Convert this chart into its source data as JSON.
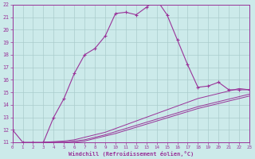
{
  "xlabel": "Windchill (Refroidissement éolien,°C)",
  "bg_color": "#cceaea",
  "grid_color": "#aacccc",
  "line_color": "#993399",
  "x_ticks": [
    0,
    1,
    2,
    3,
    4,
    5,
    6,
    7,
    8,
    9,
    10,
    11,
    12,
    13,
    14,
    15,
    16,
    17,
    18,
    19,
    20,
    21,
    22,
    23
  ],
  "y_ticks": [
    11,
    12,
    13,
    14,
    15,
    16,
    17,
    18,
    19,
    20,
    21,
    22
  ],
  "xlim": [
    0,
    23
  ],
  "ylim": [
    11,
    22
  ],
  "line1_x": [
    0,
    1,
    2,
    3,
    4,
    5,
    6,
    7,
    8,
    9,
    10,
    11,
    12,
    13,
    14,
    15,
    16,
    17,
    18,
    19,
    20,
    21,
    22,
    23
  ],
  "line1_y": [
    12,
    11,
    11,
    11,
    13,
    14.5,
    16.5,
    18,
    18.5,
    19.5,
    21.3,
    21.4,
    21.2,
    21.8,
    22.4,
    21.2,
    19.2,
    17.2,
    15.4,
    15.5,
    15.8,
    15.2,
    15.2,
    15.2
  ],
  "line2_x": [
    3,
    4,
    5,
    6,
    7,
    8,
    9,
    10,
    11,
    12,
    13,
    14,
    15,
    16,
    17,
    18,
    19,
    20,
    21,
    22,
    23
  ],
  "line2_y": [
    11,
    11.05,
    11.1,
    11.2,
    11.4,
    11.6,
    11.8,
    12.1,
    12.4,
    12.7,
    13.0,
    13.3,
    13.6,
    13.9,
    14.2,
    14.5,
    14.7,
    14.9,
    15.1,
    15.3,
    15.2
  ],
  "line3_x": [
    3,
    4,
    5,
    6,
    7,
    8,
    9,
    10,
    11,
    12,
    13,
    14,
    15,
    16,
    17,
    18,
    19,
    20,
    21,
    22,
    23
  ],
  "line3_y": [
    11,
    11,
    11.0,
    11.1,
    11.2,
    11.4,
    11.6,
    11.85,
    12.1,
    12.35,
    12.6,
    12.85,
    13.1,
    13.35,
    13.6,
    13.85,
    14.05,
    14.25,
    14.45,
    14.65,
    14.85
  ],
  "line4_x": [
    3,
    4,
    5,
    6,
    7,
    8,
    9,
    10,
    11,
    12,
    13,
    14,
    15,
    16,
    17,
    18,
    19,
    20,
    21,
    22,
    23
  ],
  "line4_y": [
    11,
    11,
    11,
    11.0,
    11.1,
    11.3,
    11.5,
    11.7,
    11.95,
    12.2,
    12.45,
    12.7,
    12.95,
    13.2,
    13.45,
    13.7,
    13.9,
    14.1,
    14.3,
    14.5,
    14.7
  ]
}
